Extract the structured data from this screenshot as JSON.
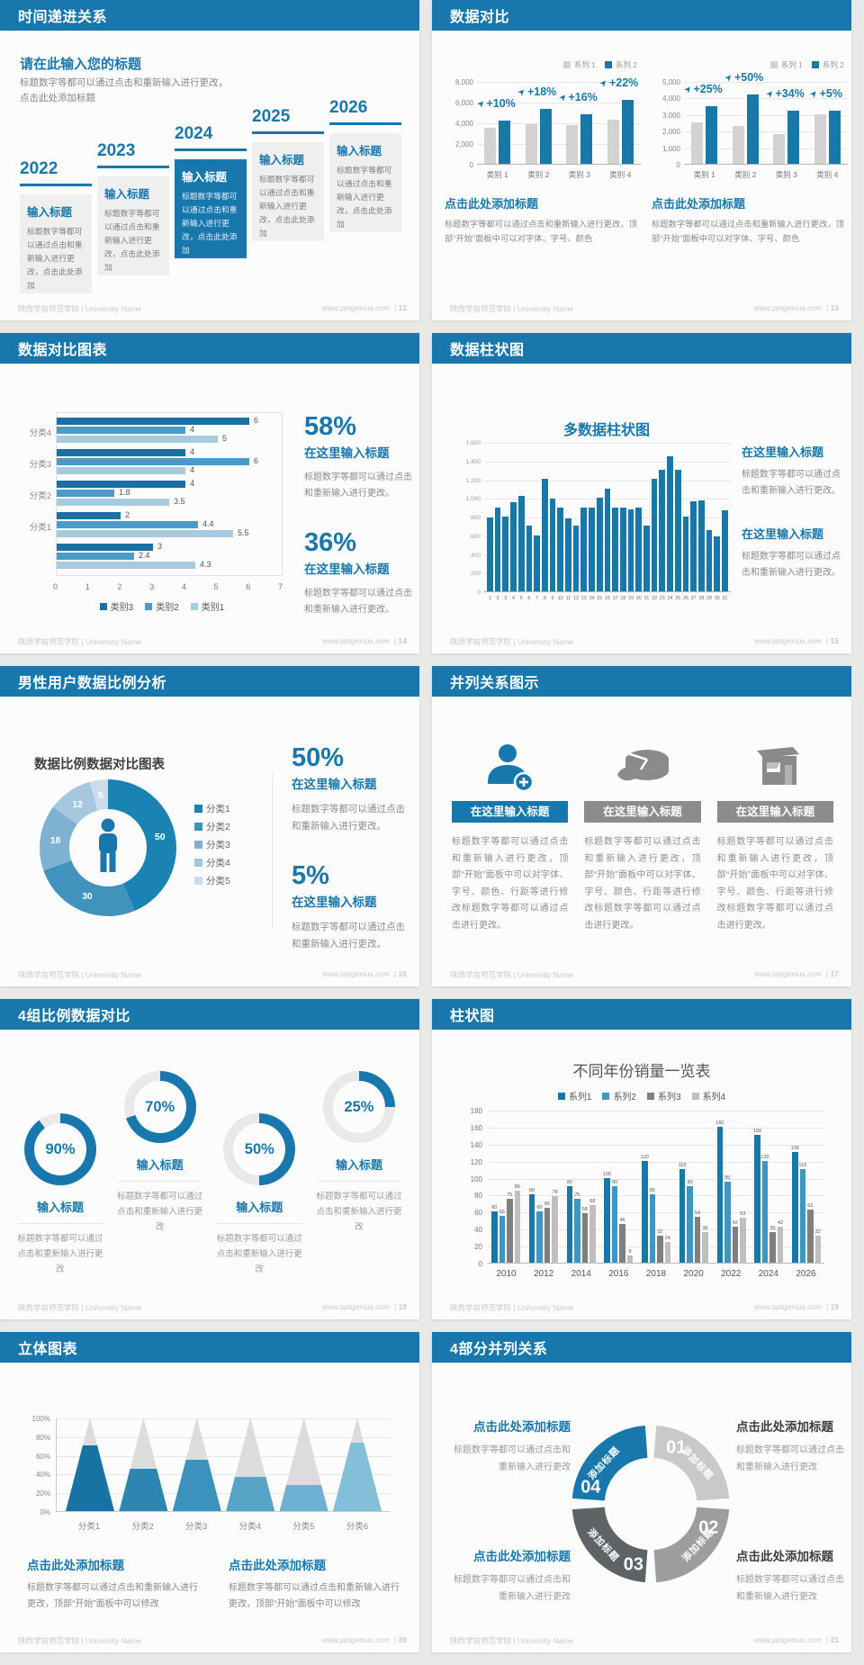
{
  "colors": {
    "accent": "#1878ad",
    "bar_blue": "#1878a8",
    "bar_gray": "#d2d2d2",
    "hbar_series": [
      "#1a6fa5",
      "#4a9cc7",
      "#a7cade"
    ],
    "grouped_series": [
      "#1878a8",
      "#3d97c2",
      "#7f7f7f",
      "#bfbfbf"
    ]
  },
  "footer": {
    "left": "陕西学前师范学院 | University Name",
    "site": "www.pptgenius.com"
  },
  "slides": [
    {
      "title": "时间递进关系",
      "page_no": "12",
      "heading": "请在此输入您的标题",
      "subtext": "标题数字等都可以通过点击和重新输入进行更改，点击此处添加标题",
      "item_title": "输入标题",
      "item_text": "标题数字等都可以通过点击和重新输入进行更改，点击此处添加",
      "years": [
        {
          "year": "2022",
          "highlight": false
        },
        {
          "year": "2023",
          "highlight": false
        },
        {
          "year": "2024",
          "highlight": true
        },
        {
          "year": "2025",
          "highlight": false
        },
        {
          "year": "2026",
          "highlight": false
        }
      ]
    },
    {
      "title": "数据对比",
      "page_no": "13",
      "legend": [
        "系列 1",
        "系列 2"
      ],
      "charts": [
        {
          "type": "bar",
          "yticks": [
            "8,000",
            "6,000",
            "4,000",
            "2,000",
            "0"
          ],
          "ymax": 8000,
          "categories": [
            "类别 1",
            "类别 2",
            "类别 3",
            "类别 4"
          ],
          "series1": [
            3500,
            3800,
            3700,
            4300
          ],
          "series2": [
            4200,
            5300,
            4800,
            6200
          ],
          "pcts": [
            "+10%",
            "+18%",
            "+16%",
            "+22%"
          ],
          "caption": "点击此处添加标题",
          "caption_text": "标题数字等都可以通过点击和重新输入进行更改，顶部“开始”面板中可以对字体、字号、颜色"
        },
        {
          "type": "bar",
          "yticks": [
            "5,000",
            "4,000",
            "3,000",
            "2,000",
            "1,000",
            "0"
          ],
          "ymax": 5000,
          "categories": [
            "类别 1",
            "类别 2",
            "类别 3",
            "类别 4"
          ],
          "series1": [
            2500,
            2300,
            1800,
            3000
          ],
          "series2": [
            3500,
            4200,
            3200,
            3200
          ],
          "pcts": [
            "+25%",
            "+50%",
            "+34%",
            "+5%"
          ],
          "caption": "点击此处添加标题",
          "caption_text": "标题数字等都可以通过点击和重新输入进行更改，顶部“开始”面板中可以对字体、字号、颜色"
        }
      ]
    },
    {
      "title": "数据对比图表",
      "page_no": "14",
      "type": "bar",
      "groups": [
        {
          "label": "分类4",
          "values": [
            6,
            4,
            5
          ]
        },
        {
          "label": "分类3",
          "values": [
            4,
            6,
            4
          ]
        },
        {
          "label": "分类2",
          "values": [
            4,
            1.8,
            3.5
          ]
        },
        {
          "label": "分类1",
          "values": [
            2,
            4.4,
            5.5
          ]
        },
        {
          "label": "",
          "values": [
            3,
            2.4,
            4.3
          ]
        }
      ],
      "xticks": [
        "0",
        "1",
        "2",
        "3",
        "4",
        "5",
        "6",
        "7"
      ],
      "xmax": 7,
      "legend": [
        "类别3",
        "类别2",
        "类别1"
      ],
      "stats": [
        {
          "pct": "58%",
          "head": "在这里输入标题",
          "text": "标题数字等都可以通过点击和重新输入进行更改。"
        },
        {
          "pct": "36%",
          "head": "在这里输入标题",
          "text": "标题数字等都可以通过点击和重新输入进行更改。"
        }
      ]
    },
    {
      "title": "数据柱状图",
      "page_no": "15",
      "type": "bar",
      "chart_title": "多数据柱状图",
      "yticks": [
        "1,600",
        "1,400",
        "1,200",
        "1,000",
        "800",
        "600",
        "400",
        "200",
        "0"
      ],
      "ymax": 1600,
      "values": [
        790,
        900,
        800,
        950,
        1020,
        700,
        600,
        1200,
        990,
        900,
        780,
        700,
        900,
        900,
        1000,
        1100,
        900,
        900,
        880,
        900,
        700,
        1200,
        1300,
        1450,
        1300,
        800,
        960,
        970,
        660,
        590,
        870
      ],
      "xlabels": [
        "1",
        "2",
        "3",
        "4",
        "5",
        "6",
        "7",
        "8",
        "9",
        "10",
        "11",
        "12",
        "13",
        "14",
        "15",
        "16",
        "17",
        "18",
        "19",
        "20",
        "21",
        "22",
        "23",
        "24",
        "25",
        "26",
        "27",
        "28",
        "29",
        "30",
        "31"
      ],
      "blocks": [
        {
          "head": "在这里输入标题",
          "text": "标题数字等都可以通过点击和重新输入进行更改。"
        },
        {
          "head": "在这里输入标题",
          "text": "标题数字等都可以通过点击和重新输入进行更改。"
        }
      ]
    },
    {
      "title": "男性用户数据比例分析",
      "page_no": "16",
      "type": "pie",
      "chart_title": "数据比例数据对比图表",
      "slices": [
        {
          "label": "分类1",
          "value": 50,
          "color": "#1b82b4"
        },
        {
          "label": "分类2",
          "value": 30,
          "color": "#4292be"
        },
        {
          "label": "分类3",
          "value": 18,
          "color": "#7fb2d0"
        },
        {
          "label": "分类4",
          "value": 12,
          "color": "#a6c8de"
        },
        {
          "label": "分类5",
          "value": 5,
          "color": "#cbdde9"
        }
      ],
      "stats": [
        {
          "pct": "50%",
          "head": "在这里输入标题",
          "text": "标题数字等都可以通过点击和重新输入进行更改。"
        },
        {
          "pct": "5%",
          "head": "在这里输入标题",
          "text": "标题数字等都可以通过点击和重新输入进行更改。"
        }
      ]
    },
    {
      "title": "并列关系图示",
      "page_no": "17",
      "items": [
        {
          "icon": "person-plus",
          "highlight": true,
          "head": "在这里输入标题",
          "text": "标题数字等都可以通过点击和重新输入进行更改，顶部“开始”面板中可以对字体、字号、颜色、行距等进行修改标题数字等都可以通过点击进行更改。"
        },
        {
          "icon": "pie-3d",
          "highlight": false,
          "head": "在这里输入标题",
          "text": "标题数字等都可以通过点击和重新输入进行更改，顶部“开始”面板中可以对字体、字号、颜色、行距等进行修改标题数字等都可以通过点击进行更改。"
        },
        {
          "icon": "building",
          "highlight": false,
          "head": "在这里输入标题",
          "text": "标题数字等都可以通过点击和重新输入进行更改，顶部“开始”面板中可以对字体、字号、颜色、行距等进行修改标题数字等都可以通过点击进行更改。"
        }
      ]
    },
    {
      "title": "4组比例数据对比",
      "page_no": "18",
      "items": [
        {
          "pct": 90,
          "label": "90%",
          "raised": false,
          "head": "输入标题",
          "text": "标题数字等都可以通过点击和重新输入进行更改"
        },
        {
          "pct": 70,
          "label": "70%",
          "raised": true,
          "head": "输入标题",
          "text": "标题数字等都可以通过点击和重新输入进行更改"
        },
        {
          "pct": 50,
          "label": "50%",
          "raised": false,
          "head": "输入标题",
          "text": "标题数字等都可以通过点击和重新输入进行更改"
        },
        {
          "pct": 25,
          "label": "25%",
          "raised": true,
          "head": "输入标题",
          "text": "标题数字等都可以通过点击和重新输入进行更改"
        }
      ]
    },
    {
      "title": "柱状图",
      "page_no": "19",
      "type": "bar",
      "chart_title": "不同年份销量一览表",
      "yticks": [
        "180",
        "160",
        "140",
        "120",
        "100",
        "80",
        "60",
        "40",
        "20",
        "0"
      ],
      "ymax": 180,
      "categories": [
        "2010",
        "2012",
        "2014",
        "2016",
        "2018",
        "2020",
        "2022",
        "2024",
        "2026"
      ],
      "series": [
        {
          "name": "系列1",
          "values": [
            60,
            80,
            90,
            100,
            120,
            110,
            160,
            150,
            130
          ]
        },
        {
          "name": "系列2",
          "values": [
            55,
            60,
            75,
            90,
            80,
            90,
            95,
            120,
            110
          ]
        },
        {
          "name": "系列3",
          "values": [
            75,
            65,
            58,
            46,
            32,
            54,
            42,
            36,
            62
          ]
        },
        {
          "name": "系列4",
          "values": [
            85,
            78,
            68,
            9,
            24,
            36,
            53,
            42,
            32
          ]
        }
      ]
    },
    {
      "title": "立体图表",
      "page_no": "20",
      "type": "bar",
      "categories": [
        "分类1",
        "分类2",
        "分类3",
        "分类4",
        "分类5",
        "分类6"
      ],
      "fills": [
        70,
        45,
        55,
        37,
        28,
        73
      ],
      "fill_colors": [
        "#1673a3",
        "#2d85b2",
        "#3c92bc",
        "#57a3c6",
        "#6cb1d1",
        "#84bfda"
      ],
      "yticks": [
        "100%",
        "80%",
        "60%",
        "40%",
        "20%",
        "0%"
      ],
      "blocks": [
        {
          "head": "点击此处添加标题",
          "text": "标题数字等都可以通过点击和重新输入进行更改，顶部“开始”面板中可以修改"
        },
        {
          "head": "点击此处添加标题",
          "text": "标题数字等都可以通过点击和重新输入进行更改，顶部“开始”面板中可以修改"
        }
      ]
    },
    {
      "title": "4部分并列关系",
      "page_no": "21",
      "ring_label": "添加标题",
      "segments": [
        {
          "num": "01",
          "color": "#c9c9c9"
        },
        {
          "num": "02",
          "color": "#9d9d9d"
        },
        {
          "num": "03",
          "color": "#5e6365"
        },
        {
          "num": "04",
          "color": "#1878ad"
        }
      ],
      "blocks": [
        {
          "head": "点击此处添加标题",
          "text": "标题数字等都可以通过点击和重新输入进行更改",
          "accent": true
        },
        {
          "head": "点击此处添加标题",
          "text": "标题数字等都可以通过点击和重新输入进行更改",
          "accent": false
        },
        {
          "head": "点击此处添加标题",
          "text": "标题数字等都可以通过点击和重新输入进行更改",
          "accent": true
        },
        {
          "head": "点击此处添加标题",
          "text": "标题数字等都可以通过点击和重新输入进行更改",
          "accent": false
        }
      ]
    }
  ]
}
